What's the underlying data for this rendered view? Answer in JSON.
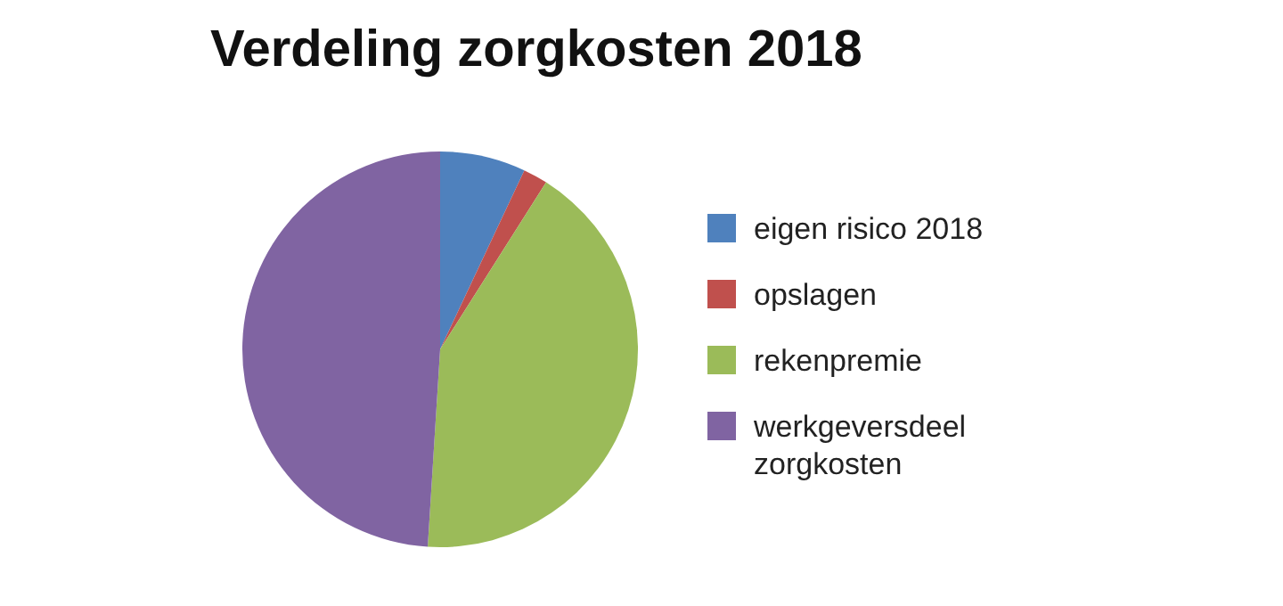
{
  "chart_data": {
    "type": "pie",
    "title": "Verdeling zorgkosten 2018",
    "categories": [
      "eigen risico 2018",
      "opslagen",
      "rekenpremie",
      "werkgeversdeel zorgkosten"
    ],
    "values": [
      7,
      2,
      42,
      49
    ],
    "colors": [
      "#4f81bd",
      "#c0504d",
      "#9bbb59",
      "#8064a2"
    ],
    "legend": "right"
  }
}
